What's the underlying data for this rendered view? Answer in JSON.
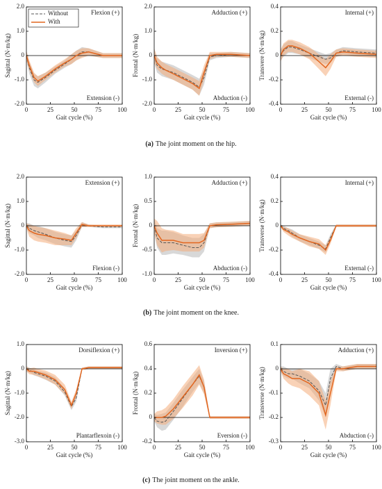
{
  "chart_data": [
    {
      "type": "line",
      "ylabel": "Sagittal (N·m/kg)",
      "xlabel": "Gait cycle (%)",
      "annotations": [
        "Flexion (+)",
        "Extension (-)"
      ],
      "legend": "upper left",
      "x": [
        0,
        3,
        8,
        12,
        20,
        30,
        40,
        47,
        52,
        58,
        65,
        80,
        100
      ],
      "xlim": [
        0,
        100
      ],
      "xticks": [
        0,
        25,
        50,
        75,
        100
      ],
      "ylim": [
        -2,
        2
      ],
      "yticks": [
        {
          "value": -2,
          "label": "-2.0"
        },
        {
          "value": -1,
          "label": "-1.0"
        },
        0,
        {
          "value": 1,
          "label": "1.0"
        },
        {
          "value": 2,
          "label": "2.0"
        }
      ],
      "series": [
        {
          "name": "Without",
          "color": "#555555",
          "band_color": "#b8b8b8",
          "dashed": true,
          "values": [
            0,
            -0.5,
            -1.0,
            -1.1,
            -0.9,
            -0.6,
            -0.35,
            -0.15,
            0,
            0.15,
            0.15,
            0,
            0
          ],
          "sd": [
            0.2,
            0.25,
            0.25,
            0.25,
            0.2,
            0.15,
            0.15,
            0.2,
            0.2,
            0.2,
            0.15,
            0.1,
            0.1
          ]
        },
        {
          "name": "With",
          "color": "#e2661f",
          "band_color": "#f4ad7c",
          "dashed": false,
          "values": [
            0,
            -0.4,
            -0.9,
            -1.05,
            -0.85,
            -0.55,
            -0.3,
            -0.15,
            0,
            0.1,
            0.15,
            0,
            0
          ],
          "sd": [
            0.2,
            0.2,
            0.2,
            0.2,
            0.15,
            0.15,
            0.15,
            0.2,
            0.2,
            0.2,
            0.15,
            0.1,
            0.1
          ]
        }
      ]
    },
    {
      "type": "line",
      "ylabel": "Frontal (N·m/kg)",
      "xlabel": "Gait cycle (%)",
      "annotations": [
        "Adduction (+)",
        "Abduction (-)"
      ],
      "x": [
        0,
        3,
        8,
        12,
        20,
        30,
        40,
        47,
        52,
        58,
        65,
        80,
        100
      ],
      "xlim": [
        0,
        100
      ],
      "xticks": [
        0,
        25,
        50,
        75,
        100
      ],
      "ylim": [
        -2,
        2
      ],
      "yticks": [
        {
          "value": -2,
          "label": "-2.0"
        },
        {
          "value": -1,
          "label": "-1.0"
        },
        0,
        {
          "value": 1,
          "label": "1.0"
        },
        {
          "value": 2,
          "label": "2.0"
        }
      ],
      "series": [
        {
          "color": "#555555",
          "band_color": "#b8b8b8",
          "dashed": true,
          "values": [
            0,
            -0.4,
            -0.55,
            -0.6,
            -0.7,
            -0.9,
            -1.1,
            -1.3,
            -0.9,
            -0.05,
            0,
            0.05,
            0
          ],
          "sd": [
            0.3,
            0.3,
            0.3,
            0.3,
            0.3,
            0.3,
            0.3,
            0.35,
            0.3,
            0.15,
            0.1,
            0.1,
            0.1
          ]
        },
        {
          "color": "#e2661f",
          "band_color": "#f4ad7c",
          "dashed": false,
          "values": [
            0,
            -0.3,
            -0.5,
            -0.6,
            -0.75,
            -0.95,
            -1.15,
            -1.35,
            -0.7,
            0,
            0.05,
            0.05,
            0
          ],
          "sd": [
            0.3,
            0.25,
            0.25,
            0.25,
            0.25,
            0.25,
            0.25,
            0.3,
            0.3,
            0.15,
            0.1,
            0.1,
            0.1
          ]
        }
      ]
    },
    {
      "type": "line",
      "ylabel": "Transvere (N·m/kg)",
      "xlabel": "Gait cycle (%)",
      "annotations": [
        "Internal (+)",
        "External (-)"
      ],
      "x": [
        0,
        3,
        8,
        12,
        20,
        30,
        40,
        47,
        52,
        58,
        65,
        80,
        100
      ],
      "xlim": [
        0,
        100
      ],
      "xticks": [
        0,
        25,
        50,
        75,
        100
      ],
      "ylim": [
        -0.4,
        0.4
      ],
      "yticks": [
        -0.4,
        -0.2,
        0,
        0.2,
        0.4
      ],
      "series": [
        {
          "color": "#555555",
          "band_color": "#b8b8b8",
          "dashed": true,
          "values": [
            0,
            0.04,
            0.07,
            0.07,
            0.05,
            0.02,
            -0.01,
            -0.03,
            -0.02,
            0.02,
            0.04,
            0.03,
            0.02
          ],
          "sd": [
            0.04,
            0.05,
            0.05,
            0.05,
            0.04,
            0.04,
            0.04,
            0.04,
            0.04,
            0.03,
            0.03,
            0.03,
            0.03
          ]
        },
        {
          "color": "#e2661f",
          "band_color": "#f4ad7c",
          "dashed": false,
          "values": [
            0,
            0.05,
            0.08,
            0.08,
            0.06,
            0.02,
            -0.05,
            -0.1,
            -0.05,
            0.02,
            0.03,
            0.02,
            0.01
          ],
          "sd": [
            0.05,
            0.05,
            0.05,
            0.05,
            0.05,
            0.05,
            0.06,
            0.07,
            0.06,
            0.03,
            0.03,
            0.03,
            0.03
          ]
        }
      ]
    },
    {
      "type": "line",
      "ylabel": "Sagittal (N·m/kg)",
      "xlabel": "Gait cycle (%)",
      "annotations": [
        "Extension (+)",
        "Flexion (-)"
      ],
      "x": [
        0,
        3,
        8,
        12,
        20,
        30,
        40,
        47,
        52,
        58,
        65,
        80,
        100
      ],
      "xlim": [
        0,
        100
      ],
      "xticks": [
        0,
        25,
        50,
        75,
        100
      ],
      "ylim": [
        -2,
        2
      ],
      "yticks": [
        {
          "value": -2,
          "label": "-2.0"
        },
        {
          "value": -1,
          "label": "-1.0"
        },
        0,
        {
          "value": 1,
          "label": "1.0"
        },
        {
          "value": 2,
          "label": "2.0"
        }
      ],
      "series": [
        {
          "color": "#555555",
          "band_color": "#b8b8b8",
          "dashed": true,
          "values": [
            0,
            -0.1,
            -0.2,
            -0.25,
            -0.35,
            -0.5,
            -0.6,
            -0.65,
            -0.4,
            0.05,
            0,
            -0.05,
            -0.05
          ],
          "sd": [
            0.1,
            0.2,
            0.2,
            0.25,
            0.25,
            0.25,
            0.25,
            0.25,
            0.2,
            0.1,
            0.05,
            0.05,
            0.05
          ]
        },
        {
          "color": "#e2661f",
          "band_color": "#f4ad7c",
          "dashed": false,
          "values": [
            0,
            -0.2,
            -0.3,
            -0.35,
            -0.4,
            -0.5,
            -0.55,
            -0.6,
            -0.3,
            0.05,
            0,
            0,
            0
          ],
          "sd": [
            0.1,
            0.25,
            0.3,
            0.3,
            0.3,
            0.3,
            0.25,
            0.2,
            0.2,
            0.1,
            0.05,
            0.05,
            0.05
          ]
        }
      ]
    },
    {
      "type": "line",
      "ylabel": "Frontal (N·m/kg)",
      "xlabel": "Gait cycle (%)",
      "annotations": [
        "Adduction (+)",
        "Abduction (-)"
      ],
      "x": [
        0,
        3,
        8,
        12,
        20,
        30,
        40,
        47,
        52,
        58,
        65,
        80,
        100
      ],
      "xlim": [
        0,
        100
      ],
      "xticks": [
        0,
        25,
        50,
        75,
        100
      ],
      "ylim": [
        -1,
        1
      ],
      "yticks": [
        {
          "value": -1,
          "label": "-1.0"
        },
        -0.5,
        0,
        0.5,
        {
          "value": 1,
          "label": "1.0"
        }
      ],
      "series": [
        {
          "color": "#555555",
          "band_color": "#b8b8b8",
          "dashed": true,
          "values": [
            0,
            -0.25,
            -0.35,
            -0.35,
            -0.35,
            -0.4,
            -0.45,
            -0.45,
            -0.35,
            0,
            0.02,
            0.03,
            0.05
          ],
          "sd": [
            0.15,
            0.2,
            0.25,
            0.25,
            0.22,
            0.2,
            0.2,
            0.2,
            0.18,
            0.05,
            0.05,
            0.05,
            0.05
          ]
        },
        {
          "color": "#e2661f",
          "band_color": "#f4ad7c",
          "dashed": false,
          "values": [
            0,
            -0.15,
            -0.3,
            -0.3,
            -0.3,
            -0.35,
            -0.35,
            -0.35,
            -0.3,
            0,
            0.02,
            0.03,
            0.05
          ],
          "sd": [
            0.15,
            0.25,
            0.25,
            0.22,
            0.2,
            0.18,
            0.18,
            0.18,
            0.15,
            0.05,
            0.05,
            0.05,
            0.05
          ]
        }
      ]
    },
    {
      "type": "line",
      "ylabel": "Transverse (N·m/kg)",
      "xlabel": "Gait cycle (%)",
      "annotations": [
        "Internal (+)",
        "External (-)"
      ],
      "x": [
        0,
        3,
        8,
        12,
        20,
        30,
        40,
        47,
        52,
        58,
        65,
        80,
        100
      ],
      "xlim": [
        0,
        100
      ],
      "xticks": [
        0,
        25,
        50,
        75,
        100
      ],
      "ylim": [
        -0.4,
        0.4
      ],
      "yticks": [
        -0.4,
        -0.2,
        0,
        0.2,
        0.4
      ],
      "series": [
        {
          "color": "#555555",
          "band_color": "#b8b8b8",
          "dashed": true,
          "values": [
            0,
            -0.02,
            -0.04,
            -0.06,
            -0.1,
            -0.13,
            -0.16,
            -0.19,
            -0.1,
            0,
            0,
            0,
            0
          ],
          "sd": [
            0.01,
            0.02,
            0.02,
            0.03,
            0.03,
            0.03,
            0.03,
            0.03,
            0.03,
            0.01,
            0.01,
            0.01,
            0.01
          ]
        },
        {
          "color": "#e2661f",
          "band_color": "#f4ad7c",
          "dashed": false,
          "values": [
            0,
            -0.03,
            -0.05,
            -0.07,
            -0.1,
            -0.13,
            -0.15,
            -0.2,
            -0.12,
            0,
            0,
            0,
            0
          ],
          "sd": [
            0.01,
            0.02,
            0.03,
            0.03,
            0.03,
            0.04,
            0.04,
            0.04,
            0.03,
            0.01,
            0.01,
            0.01,
            0.01
          ]
        }
      ]
    },
    {
      "type": "line",
      "ylabel": "Sagittal (N·m/kg)",
      "xlabel": "Gait cycle (%)",
      "annotations": [
        "Dorsiflexion (+)",
        "Plantarflexoin (-)"
      ],
      "x": [
        0,
        3,
        8,
        12,
        20,
        30,
        40,
        47,
        52,
        58,
        65,
        80,
        100
      ],
      "xlim": [
        0,
        100
      ],
      "xticks": [
        0,
        25,
        50,
        75,
        100
      ],
      "ylim": [
        -3,
        1
      ],
      "yticks": [
        {
          "value": -3,
          "label": "-3.0"
        },
        {
          "value": -2,
          "label": "-2.0"
        },
        {
          "value": -1,
          "label": "-1.0"
        },
        0,
        {
          "value": 1,
          "label": "1.0"
        }
      ],
      "series": [
        {
          "color": "#555555",
          "band_color": "#b8b8b8",
          "dashed": true,
          "values": [
            0,
            -0.05,
            -0.15,
            -0.2,
            -0.3,
            -0.5,
            -0.95,
            -1.55,
            -1.2,
            0,
            0.05,
            0.05,
            0.05
          ],
          "sd": [
            0.1,
            0.1,
            0.12,
            0.12,
            0.15,
            0.15,
            0.15,
            0.15,
            0.15,
            0.05,
            0.05,
            0.05,
            0.05
          ]
        },
        {
          "color": "#e2661f",
          "band_color": "#f4ad7c",
          "dashed": false,
          "values": [
            0,
            -0.1,
            -0.1,
            -0.15,
            -0.25,
            -0.45,
            -0.85,
            -1.5,
            -1.0,
            0,
            0.05,
            0.05,
            0.05
          ],
          "sd": [
            0.1,
            0.12,
            0.15,
            0.15,
            0.18,
            0.2,
            0.2,
            0.15,
            0.15,
            0.05,
            0.05,
            0.05,
            0.05
          ]
        }
      ]
    },
    {
      "type": "line",
      "ylabel": "Frontal (N·m/kg)",
      "xlabel": "Gait cycle (%)",
      "annotations": [
        "Inversion (+)",
        "Eversion (-)"
      ],
      "x": [
        0,
        3,
        8,
        12,
        20,
        30,
        40,
        47,
        52,
        58,
        65,
        80,
        100
      ],
      "xlim": [
        0,
        100
      ],
      "xticks": [
        0,
        25,
        50,
        75,
        100
      ],
      "ylim": [
        -0.2,
        0.6
      ],
      "yticks": [
        -0.2,
        0,
        0.2,
        0.4,
        0.6
      ],
      "series": [
        {
          "color": "#555555",
          "band_color": "#b8b8b8",
          "dashed": true,
          "values": [
            0,
            -0.03,
            -0.04,
            -0.03,
            0.05,
            0.16,
            0.27,
            0.34,
            0.25,
            0,
            0,
            0,
            0
          ],
          "sd": [
            0.03,
            0.05,
            0.07,
            0.07,
            0.07,
            0.07,
            0.06,
            0.06,
            0.05,
            0.01,
            0.01,
            0.01,
            0.01
          ]
        },
        {
          "color": "#e2661f",
          "band_color": "#f4ad7c",
          "dashed": false,
          "values": [
            0,
            0,
            0,
            0.01,
            0.07,
            0.17,
            0.27,
            0.35,
            0.25,
            0,
            0,
            0,
            0
          ],
          "sd": [
            0.03,
            0.05,
            0.06,
            0.07,
            0.08,
            0.09,
            0.09,
            0.08,
            0.06,
            0.01,
            0.01,
            0.01,
            0.01
          ]
        }
      ]
    },
    {
      "type": "line",
      "ylabel": "Transverse (N·m/kg)",
      "xlabel": "Gait cycle (%)",
      "annotations": [
        "Adduction (+)",
        "Abduction (-)"
      ],
      "x": [
        0,
        3,
        8,
        12,
        20,
        30,
        40,
        47,
        52,
        58,
        65,
        80,
        100
      ],
      "xlim": [
        0,
        100
      ],
      "xticks": [
        0,
        25,
        50,
        75,
        100
      ],
      "ylim": [
        -0.3,
        0.1
      ],
      "yticks": [
        -0.3,
        -0.2,
        -0.1,
        0,
        0.1
      ],
      "series": [
        {
          "color": "#555555",
          "band_color": "#b8b8b8",
          "dashed": true,
          "values": [
            0,
            -0.01,
            -0.02,
            -0.02,
            -0.03,
            -0.05,
            -0.09,
            -0.15,
            -0.04,
            0.01,
            0,
            0.01,
            0.01
          ],
          "sd": [
            0.01,
            0.02,
            0.02,
            0.02,
            0.03,
            0.03,
            0.04,
            0.05,
            0.04,
            0.01,
            0.01,
            0.01,
            0.01
          ]
        },
        {
          "color": "#e2661f",
          "band_color": "#f4ad7c",
          "dashed": false,
          "values": [
            0,
            -0.02,
            -0.03,
            -0.04,
            -0.04,
            -0.06,
            -0.1,
            -0.19,
            -0.1,
            0,
            0,
            0.01,
            0.01
          ],
          "sd": [
            0.01,
            0.02,
            0.03,
            0.03,
            0.04,
            0.05,
            0.05,
            0.06,
            0.05,
            0.01,
            0.01,
            0.01,
            0.01
          ]
        }
      ]
    }
  ],
  "captions": [
    {
      "label": "(a)",
      "text": "The joint moment on the hip."
    },
    {
      "label": "(b)",
      "text": "The joint moment on the knee."
    },
    {
      "label": "(c)",
      "text": "The joint moment on the ankle."
    }
  ]
}
